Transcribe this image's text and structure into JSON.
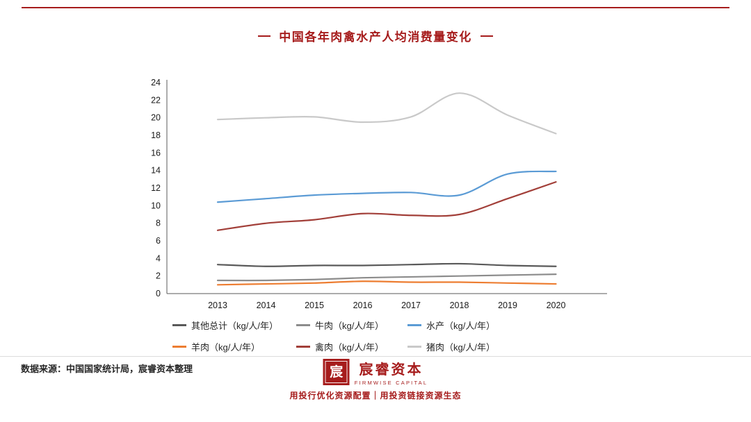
{
  "page": {
    "title": "中国各年肉禽水产人均消费量变化",
    "source_note": "数据来源：中国国家统计局，宸睿资本整理",
    "brand": {
      "name_cn": "宸睿资本",
      "name_en": "FIRMWISE CAPITAL",
      "logo_glyph": "宸",
      "tagline": "用投行优化资源配置｜用投资链接资源生态",
      "accent_color": "#a61c1c"
    }
  },
  "chart_data": {
    "type": "line",
    "title": "中国各年肉禽水产人均消费量变化",
    "xlabel": "",
    "ylabel": "",
    "x": [
      2013,
      2014,
      2015,
      2016,
      2017,
      2018,
      2019,
      2020
    ],
    "ylim": [
      0,
      24
    ],
    "ytick_step": 2,
    "grid": false,
    "legend_position": "bottom",
    "series": [
      {
        "name": "其他总计（kg/人/年）",
        "color": "#595959",
        "values": [
          3.3,
          3.1,
          3.2,
          3.2,
          3.3,
          3.4,
          3.2,
          3.1
        ]
      },
      {
        "name": "牛肉（kg/人/年）",
        "color": "#8c8c8c",
        "values": [
          1.5,
          1.5,
          1.6,
          1.8,
          1.9,
          2.0,
          2.1,
          2.2
        ]
      },
      {
        "name": "水产（kg/人/年）",
        "color": "#5b9bd5",
        "values": [
          10.4,
          10.8,
          11.2,
          11.4,
          11.5,
          11.2,
          13.6,
          13.9
        ]
      },
      {
        "name": "羊肉（kg/人/年）",
        "color": "#ed7d31",
        "values": [
          1.0,
          1.1,
          1.2,
          1.4,
          1.3,
          1.3,
          1.2,
          1.1
        ]
      },
      {
        "name": "禽肉（kg/人/年）",
        "color": "#a23f39",
        "values": [
          7.2,
          8.0,
          8.4,
          9.1,
          8.9,
          9.0,
          10.8,
          12.7
        ]
      },
      {
        "name": "猪肉（kg/人/年）",
        "color": "#c9c9c9",
        "values": [
          19.8,
          20.0,
          20.1,
          19.5,
          20.1,
          22.8,
          20.3,
          18.2
        ]
      }
    ]
  }
}
